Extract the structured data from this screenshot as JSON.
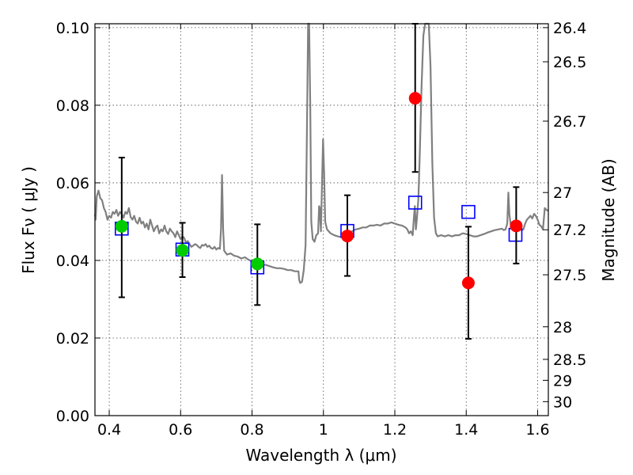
{
  "chart_data": {
    "type": "scatter",
    "title": "",
    "xlabel": "Wavelength  λ (μm)",
    "ylabel": "Flux  Fν  ( μJy )",
    "ylabel_right": "Magnitude (AB)",
    "xlim": [
      0.36,
      1.63
    ],
    "ylim": [
      0.0,
      0.101
    ],
    "grid": true,
    "x_ticks": [
      0.4,
      0.6,
      0.8,
      1.0,
      1.2,
      1.4,
      1.6
    ],
    "x_tick_labels": [
      "0.4",
      "0.6",
      "0.8",
      "1",
      "1.2",
      "1.4",
      "1.6"
    ],
    "y_ticks": [
      0.0,
      0.02,
      0.04,
      0.06,
      0.08,
      0.1
    ],
    "y_tick_labels": [
      "0.00",
      "0.02",
      "0.04",
      "0.06",
      "0.08",
      "0.10"
    ],
    "mag_ticks": [
      {
        "label": "26.4",
        "flux": 0.1
      },
      {
        "label": "26.5",
        "flux": 0.0912
      },
      {
        "label": "26.7",
        "flux": 0.0759
      },
      {
        "label": "27",
        "flux": 0.0575
      },
      {
        "label": "27.2",
        "flux": 0.0479
      },
      {
        "label": "27.5",
        "flux": 0.0363
      },
      {
        "label": "28",
        "flux": 0.0229
      },
      {
        "label": "28.5",
        "flux": 0.0145
      },
      {
        "label": "29",
        "flux": 0.0091
      },
      {
        "label": "30",
        "flux": 0.0036
      }
    ],
    "colors": {
      "spectrum": "#808080",
      "model_squares": "#0000ff",
      "optical_points": "#00cc00",
      "nir_points": "#ff0000",
      "error_bars": "#000000"
    },
    "series": [
      {
        "kind": "line",
        "color": "#808080",
        "points": [
          [
            0.36,
            0.052
          ],
          [
            0.362,
            0.0505
          ],
          [
            0.365,
            0.0565
          ],
          [
            0.37,
            0.058
          ],
          [
            0.375,
            0.056
          ],
          [
            0.38,
            0.0555
          ],
          [
            0.385,
            0.0535
          ],
          [
            0.39,
            0.0525
          ],
          [
            0.395,
            0.0505
          ],
          [
            0.4,
            0.0515
          ],
          [
            0.405,
            0.051
          ],
          [
            0.41,
            0.0525
          ],
          [
            0.415,
            0.052
          ],
          [
            0.42,
            0.053
          ],
          [
            0.425,
            0.0515
          ],
          [
            0.43,
            0.0525
          ],
          [
            0.435,
            0.052
          ],
          [
            0.44,
            0.051
          ],
          [
            0.445,
            0.0525
          ],
          [
            0.45,
            0.052
          ],
          [
            0.455,
            0.0535
          ],
          [
            0.46,
            0.0512
          ],
          [
            0.465,
            0.0505
          ],
          [
            0.47,
            0.0515
          ],
          [
            0.475,
            0.05
          ],
          [
            0.48,
            0.0495
          ],
          [
            0.485,
            0.051
          ],
          [
            0.49,
            0.0495
          ],
          [
            0.495,
            0.05
          ],
          [
            0.5,
            0.0485
          ],
          [
            0.505,
            0.0495
          ],
          [
            0.51,
            0.048
          ],
          [
            0.515,
            0.0505
          ],
          [
            0.52,
            0.049
          ],
          [
            0.525,
            0.0475
          ],
          [
            0.53,
            0.0485
          ],
          [
            0.535,
            0.049
          ],
          [
            0.54,
            0.047
          ],
          [
            0.545,
            0.048
          ],
          [
            0.55,
            0.0475
          ],
          [
            0.555,
            0.049
          ],
          [
            0.56,
            0.0475
          ],
          [
            0.565,
            0.0468
          ],
          [
            0.57,
            0.0482
          ],
          [
            0.575,
            0.0475
          ],
          [
            0.58,
            0.047
          ],
          [
            0.585,
            0.046
          ],
          [
            0.59,
            0.0475
          ],
          [
            0.595,
            0.0465
          ],
          [
            0.6,
            0.0455
          ],
          [
            0.605,
            0.0462
          ],
          [
            0.61,
            0.0458
          ],
          [
            0.615,
            0.0445
          ],
          [
            0.62,
            0.045
          ],
          [
            0.625,
            0.0442
          ],
          [
            0.63,
            0.0435
          ],
          [
            0.635,
            0.0438
          ],
          [
            0.64,
            0.0442
          ],
          [
            0.645,
            0.044
          ],
          [
            0.65,
            0.0435
          ],
          [
            0.655,
            0.0432
          ],
          [
            0.66,
            0.044
          ],
          [
            0.665,
            0.0438
          ],
          [
            0.67,
            0.0442
          ],
          [
            0.675,
            0.0435
          ],
          [
            0.68,
            0.0438
          ],
          [
            0.685,
            0.0432
          ],
          [
            0.69,
            0.043
          ],
          [
            0.695,
            0.0435
          ],
          [
            0.7,
            0.0428
          ],
          [
            0.705,
            0.0432
          ],
          [
            0.71,
            0.043
          ],
          [
            0.713,
            0.048
          ],
          [
            0.716,
            0.062
          ],
          [
            0.719,
            0.048
          ],
          [
            0.722,
            0.0425
          ],
          [
            0.73,
            0.0415
          ],
          [
            0.74,
            0.0418
          ],
          [
            0.75,
            0.0412
          ],
          [
            0.76,
            0.041
          ],
          [
            0.77,
            0.0405
          ],
          [
            0.78,
            0.0408
          ],
          [
            0.79,
            0.0402
          ],
          [
            0.8,
            0.0398
          ],
          [
            0.81,
            0.0395
          ],
          [
            0.82,
            0.0392
          ],
          [
            0.83,
            0.039
          ],
          [
            0.84,
            0.0388
          ],
          [
            0.85,
            0.0385
          ],
          [
            0.86,
            0.0382
          ],
          [
            0.87,
            0.038
          ],
          [
            0.88,
            0.038
          ],
          [
            0.89,
            0.0378
          ],
          [
            0.9,
            0.0375
          ],
          [
            0.91,
            0.0375
          ],
          [
            0.92,
            0.0372
          ],
          [
            0.93,
            0.0372
          ],
          [
            0.932,
            0.035
          ],
          [
            0.935,
            0.0342
          ],
          [
            0.94,
            0.0345
          ],
          [
            0.945,
            0.0375
          ],
          [
            0.95,
            0.044
          ],
          [
            0.954,
            0.075
          ],
          [
            0.957,
            0.101
          ],
          [
            0.96,
            0.101
          ],
          [
            0.963,
            0.08
          ],
          [
            0.966,
            0.05
          ],
          [
            0.97,
            0.0455
          ],
          [
            0.975,
            0.0448
          ],
          [
            0.98,
            0.0465
          ],
          [
            0.985,
            0.047
          ],
          [
            0.988,
            0.054
          ],
          [
            0.99,
            0.0535
          ],
          [
            0.993,
            0.0475
          ],
          [
            0.996,
            0.06
          ],
          [
            0.999,
            0.0712
          ],
          [
            1.002,
            0.062
          ],
          [
            1.005,
            0.05
          ],
          [
            1.01,
            0.048
          ],
          [
            1.02,
            0.047
          ],
          [
            1.03,
            0.0465
          ],
          [
            1.04,
            0.0462
          ],
          [
            1.05,
            0.046
          ],
          [
            1.06,
            0.0465
          ],
          [
            1.07,
            0.047
          ],
          [
            1.08,
            0.0475
          ],
          [
            1.09,
            0.048
          ],
          [
            1.1,
            0.0482
          ],
          [
            1.11,
            0.0485
          ],
          [
            1.12,
            0.0485
          ],
          [
            1.13,
            0.049
          ],
          [
            1.14,
            0.049
          ],
          [
            1.15,
            0.0492
          ],
          [
            1.16,
            0.049
          ],
          [
            1.17,
            0.0495
          ],
          [
            1.18,
            0.0495
          ],
          [
            1.19,
            0.0498
          ],
          [
            1.2,
            0.0495
          ],
          [
            1.21,
            0.0492
          ],
          [
            1.22,
            0.049
          ],
          [
            1.23,
            0.0485
          ],
          [
            1.235,
            0.048
          ],
          [
            1.24,
            0.047
          ],
          [
            1.245,
            0.0475
          ],
          [
            1.25,
            0.0465
          ],
          [
            1.253,
            0.0505
          ],
          [
            1.256,
            0.054
          ],
          [
            1.259,
            0.048
          ],
          [
            1.262,
            0.051
          ],
          [
            1.266,
            0.056
          ],
          [
            1.27,
            0.068
          ],
          [
            1.275,
            0.085
          ],
          [
            1.28,
            0.098
          ],
          [
            1.285,
            0.101
          ],
          [
            1.295,
            0.101
          ],
          [
            1.3,
            0.09
          ],
          [
            1.305,
            0.065
          ],
          [
            1.31,
            0.051
          ],
          [
            1.315,
            0.047
          ],
          [
            1.32,
            0.0462
          ],
          [
            1.33,
            0.0465
          ],
          [
            1.34,
            0.0462
          ],
          [
            1.35,
            0.0465
          ],
          [
            1.36,
            0.0462
          ],
          [
            1.37,
            0.0465
          ],
          [
            1.38,
            0.0465
          ],
          [
            1.39,
            0.047
          ],
          [
            1.4,
            0.0468
          ],
          [
            1.41,
            0.0465
          ],
          [
            1.42,
            0.0462
          ],
          [
            1.43,
            0.0462
          ],
          [
            1.44,
            0.0465
          ],
          [
            1.45,
            0.0468
          ],
          [
            1.46,
            0.0472
          ],
          [
            1.47,
            0.0475
          ],
          [
            1.48,
            0.0478
          ],
          [
            1.49,
            0.048
          ],
          [
            1.5,
            0.0482
          ],
          [
            1.505,
            0.0478
          ],
          [
            1.51,
            0.048
          ],
          [
            1.515,
            0.0495
          ],
          [
            1.518,
            0.0575
          ],
          [
            1.521,
            0.0518
          ],
          [
            1.525,
            0.049
          ],
          [
            1.53,
            0.0488
          ],
          [
            1.535,
            0.0478
          ],
          [
            1.54,
            0.0482
          ],
          [
            1.545,
            0.0485
          ],
          [
            1.55,
            0.0482
          ],
          [
            1.555,
            0.0478
          ],
          [
            1.56,
            0.048
          ],
          [
            1.565,
            0.0495
          ],
          [
            1.57,
            0.0505
          ],
          [
            1.575,
            0.051
          ],
          [
            1.58,
            0.0515
          ],
          [
            1.585,
            0.0508
          ],
          [
            1.59,
            0.052
          ],
          [
            1.595,
            0.0515
          ],
          [
            1.6,
            0.0505
          ],
          [
            1.605,
            0.0492
          ],
          [
            1.61,
            0.0488
          ],
          [
            1.615,
            0.048
          ],
          [
            1.62,
            0.0535
          ],
          [
            1.625,
            0.053
          ],
          [
            1.63,
            0.0528
          ]
        ]
      },
      {
        "kind": "squares",
        "color": "#0000ff",
        "points": [
          [
            0.435,
            0.0482
          ],
          [
            0.605,
            0.0428
          ],
          [
            0.815,
            0.0382
          ],
          [
            1.067,
            0.0476
          ],
          [
            1.257,
            0.0549
          ],
          [
            1.406,
            0.0525
          ],
          [
            1.538,
            0.0466
          ]
        ]
      },
      {
        "kind": "points",
        "color": "#00cc00",
        "points": [
          {
            "x": 0.435,
            "y": 0.0488,
            "err_lo": 0.0305,
            "err_hi": 0.0665
          },
          {
            "x": 0.605,
            "y": 0.0426,
            "err_lo": 0.0357,
            "err_hi": 0.0497
          },
          {
            "x": 0.815,
            "y": 0.0391,
            "err_lo": 0.0285,
            "err_hi": 0.0493
          }
        ]
      },
      {
        "kind": "points",
        "color": "#ff0000",
        "points": [
          {
            "x": 1.067,
            "y": 0.0463,
            "err_lo": 0.036,
            "err_hi": 0.0568
          },
          {
            "x": 1.257,
            "y": 0.0818,
            "err_lo": 0.0628,
            "err_hi": 0.101
          },
          {
            "x": 1.406,
            "y": 0.0342,
            "err_lo": 0.0198,
            "err_hi": 0.0487
          },
          {
            "x": 1.54,
            "y": 0.0489,
            "err_lo": 0.0392,
            "err_hi": 0.0589
          }
        ]
      }
    ]
  }
}
